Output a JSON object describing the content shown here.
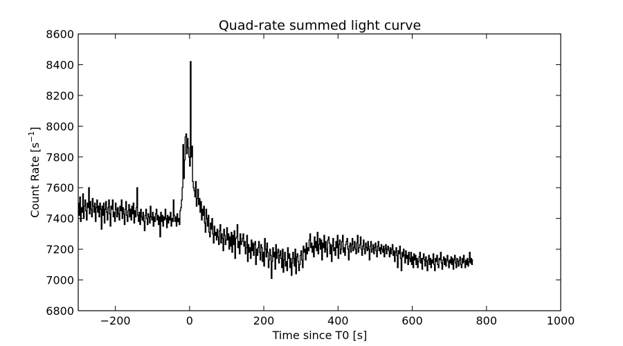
{
  "chart_data": {
    "type": "line",
    "title": "Quad-rate summed light curve",
    "xlabel": "Time since T0 [s]",
    "ylabel_base": "Count Rate [s",
    "ylabel_sup": "−1",
    "ylabel_end": "]",
    "xlim": [
      -300,
      1000
    ],
    "ylim": [
      6800,
      8600
    ],
    "xticks": [
      -200,
      0,
      200,
      400,
      600,
      800,
      1000
    ],
    "xtick_labels": [
      "−200",
      "0",
      "200",
      "400",
      "600",
      "800",
      "1000"
    ],
    "yticks": [
      6800,
      7000,
      7200,
      7400,
      7600,
      7800,
      8000,
      8200,
      8400,
      8600
    ],
    "ytick_labels": [
      "6800",
      "7000",
      "7200",
      "7400",
      "7600",
      "7800",
      "8000",
      "8200",
      "8400",
      "8600"
    ],
    "grid": false,
    "legend": "none",
    "line_color": "#000000",
    "series": [
      {
        "x_start": -300,
        "x_step": 2,
        "values": [
          7500,
          7420,
          7540,
          7380,
          7470,
          7440,
          7560,
          7400,
          7480,
          7520,
          7450,
          7390,
          7500,
          7470,
          7600,
          7430,
          7510,
          7460,
          7410,
          7530,
          7480,
          7440,
          7500,
          7380,
          7470,
          7520,
          7440,
          7480,
          7410,
          7500,
          7460,
          7330,
          7480,
          7420,
          7500,
          7370,
          7460,
          7510,
          7440,
          7390,
          7470,
          7520,
          7430,
          7350,
          7480,
          7460,
          7520,
          7410,
          7440,
          7380,
          7500,
          7460,
          7410,
          7470,
          7430,
          7390,
          7480,
          7450,
          7520,
          7400,
          7470,
          7430,
          7360,
          7460,
          7510,
          7420,
          7380,
          7450,
          7490,
          7410,
          7460,
          7390,
          7480,
          7430,
          7500,
          7370,
          7450,
          7410,
          7470,
          7600,
          7420,
          7380,
          7440,
          7360,
          7460,
          7410,
          7390,
          7440,
          7380,
          7320,
          7420,
          7460,
          7400,
          7360,
          7430,
          7410,
          7370,
          7480,
          7410,
          7390,
          7440,
          7350,
          7410,
          7380,
          7430,
          7460,
          7390,
          7420,
          7360,
          7410,
          7280,
          7440,
          7380,
          7420,
          7350,
          7410,
          7390,
          7460,
          7400,
          7340,
          7420,
          7370,
          7410,
          7390,
          7440,
          7350,
          7400,
          7380,
          7520,
          7420,
          7380,
          7410,
          7350,
          7430,
          7380,
          7400,
          7360,
          7450,
          7470,
          7520,
          7600,
          7880,
          7660,
          7780,
          7930,
          7950,
          7820,
          7920,
          7860,
          7800,
          7740,
          8420,
          7800,
          7870,
          7640,
          7600,
          7580,
          7540,
          7640,
          7480,
          7530,
          7590,
          7490,
          7530,
          7440,
          7510,
          7390,
          7460,
          7420,
          7480,
          7370,
          7310,
          7460,
          7400,
          7350,
          7420,
          7310,
          7280,
          7370,
          7330,
          7400,
          7300,
          7240,
          7350,
          7290,
          7310,
          7260,
          7330,
          7280,
          7230,
          7320,
          7360,
          7240,
          7300,
          7270,
          7190,
          7330,
          7290,
          7230,
          7260,
          7340,
          7260,
          7300,
          7200,
          7280,
          7220,
          7310,
          7180,
          7290,
          7230,
          7320,
          7140,
          7270,
          7280,
          7360,
          7210,
          7250,
          7170,
          7300,
          7230,
          7250,
          7270,
          7300,
          7220,
          7250,
          7170,
          7210,
          7290,
          7120,
          7230,
          7180,
          7210,
          7140,
          7260,
          7190,
          7240,
          7160,
          7230,
          7250,
          7100,
          7200,
          7160,
          7210,
          7250,
          7180,
          7130,
          7230,
          7210,
          7120,
          7180,
          7090,
          7270,
          7200,
          7150,
          7240,
          7180,
          7080,
          7130,
          7200,
          7160,
          7010,
          7120,
          7210,
          7150,
          7180,
          7070,
          7230,
          7140,
          7180,
          7200,
          7110,
          7160,
          7190,
          7140,
          7080,
          7200,
          7050,
          7130,
          7180,
          7090,
          7120,
          7060,
          7210,
          7140,
          7170,
          7080,
          7140,
          7030,
          7110,
          7180,
          7140,
          7090,
          7200,
          7040,
          7150,
          7170,
          7120,
          7060,
          7100,
          7160,
          7190,
          7130,
          7080,
          7220,
          7180,
          7200,
          7130,
          7240,
          7170,
          7210,
          7190,
          7260,
          7300,
          7210,
          7240,
          7180,
          7220,
          7150,
          7280,
          7210,
          7250,
          7190,
          7310,
          7170,
          7230,
          7270,
          7200,
          7260,
          7130,
          7240,
          7210,
          7290,
          7180,
          7250,
          7200,
          7150,
          7260,
          7280,
          7240,
          7170,
          7230,
          7120,
          7220,
          7270,
          7190,
          7210,
          7160,
          7250,
          7210,
          7290,
          7140,
          7230,
          7260,
          7170,
          7200,
          7250,
          7290,
          7180,
          7210,
          7160,
          7230,
          7250,
          7270,
          7200,
          7130,
          7220,
          7240,
          7180,
          7230,
          7270,
          7190,
          7210,
          7250,
          7200,
          7170,
          7240,
          7290,
          7180,
          7210,
          7230,
          7280,
          7200,
          7160,
          7220,
          7260,
          7200,
          7170,
          7240,
          7210,
          7190,
          7250,
          7200,
          7130,
          7220,
          7250,
          7180,
          7200,
          7230,
          7170,
          7210,
          7240,
          7190,
          7150,
          7220,
          7250,
          7190,
          7210,
          7170,
          7230,
          7200,
          7180,
          7220,
          7150,
          7200,
          7230,
          7170,
          7200,
          7220,
          7190,
          7150,
          7210,
          7170,
          7200,
          7230,
          7160,
          7190,
          7120,
          7180,
          7210,
          7160,
          7080,
          7190,
          7170,
          7220,
          7140,
          7060,
          7180,
          7150,
          7200,
          7160,
          7110,
          7190,
          7140,
          7160,
          7100,
          7180,
          7140,
          7120,
          7180,
          7100,
          7150,
          7080,
          7170,
          7130,
          7160,
          7100,
          7140,
          7080,
          7120,
          7150,
          7180,
          7110,
          7140,
          7070,
          7140,
          7170,
          7130,
          7090,
          7150,
          7120,
          7060,
          7130,
          7160,
          7100,
          7140,
          7080,
          7130,
          7110,
          7170,
          7100,
          7060,
          7140,
          7120,
          7160,
          7100,
          7080,
          7140,
          7130,
          7180,
          7110,
          7070,
          7130,
          7150,
          7100,
          7140,
          7090,
          7130,
          7160,
          7120,
          7080,
          7130,
          7110,
          7150,
          7100,
          7140,
          7070,
          7130,
          7160,
          7110,
          7080,
          7140,
          7120,
          7090,
          7130,
          7150,
          7100,
          7080,
          7140,
          7110,
          7160,
          7120,
          7080,
          7130,
          7100,
          7140,
          7090,
          7120,
          7180,
          7110,
          7140,
          7100,
          7130
        ]
      }
    ]
  }
}
